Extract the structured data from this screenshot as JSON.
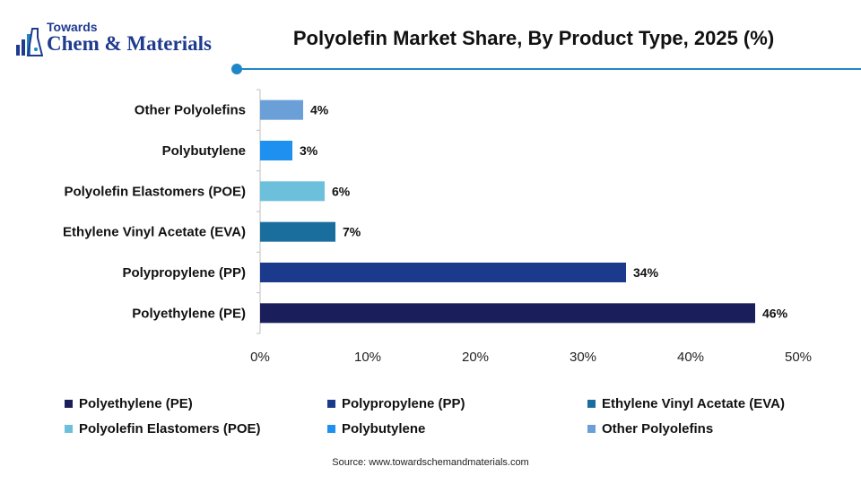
{
  "logo": {
    "line1": "Towards",
    "line2": "Chem & Materials"
  },
  "title": "Polyolefin Market Share, By Product Type, 2025 (%)",
  "source": "Source: www.towardschemandmaterials.com",
  "chart_data": {
    "type": "bar",
    "orientation": "horizontal",
    "categories": [
      "Polyethylene (PE)",
      "Polypropylene (PP)",
      "Ethylene Vinyl Acetate (EVA)",
      "Polyolefin Elastomers (POE)",
      "Polybutylene",
      "Other Polyolefins"
    ],
    "values": [
      46,
      34,
      7,
      6,
      3,
      4
    ],
    "value_labels": [
      "46%",
      "34%",
      "7%",
      "6%",
      "3%",
      "4%"
    ],
    "colors": [
      "#1a1f5c",
      "#1b3a8c",
      "#1a6e9e",
      "#6cc0dc",
      "#1e90f0",
      "#6a9fd8"
    ],
    "xlim": [
      0,
      50
    ],
    "xticks": [
      0,
      10,
      20,
      30,
      40,
      50
    ],
    "xtick_labels": [
      "0%",
      "10%",
      "20%",
      "30%",
      "40%",
      "50%"
    ],
    "grid": false,
    "legend_position": "bottom",
    "legend": [
      "Polyethylene (PE)",
      "Polypropylene (PP)",
      "Ethylene Vinyl Acetate (EVA)",
      "Polyolefin Elastomers (POE)",
      "Polybutylene",
      "Other Polyolefins"
    ]
  }
}
